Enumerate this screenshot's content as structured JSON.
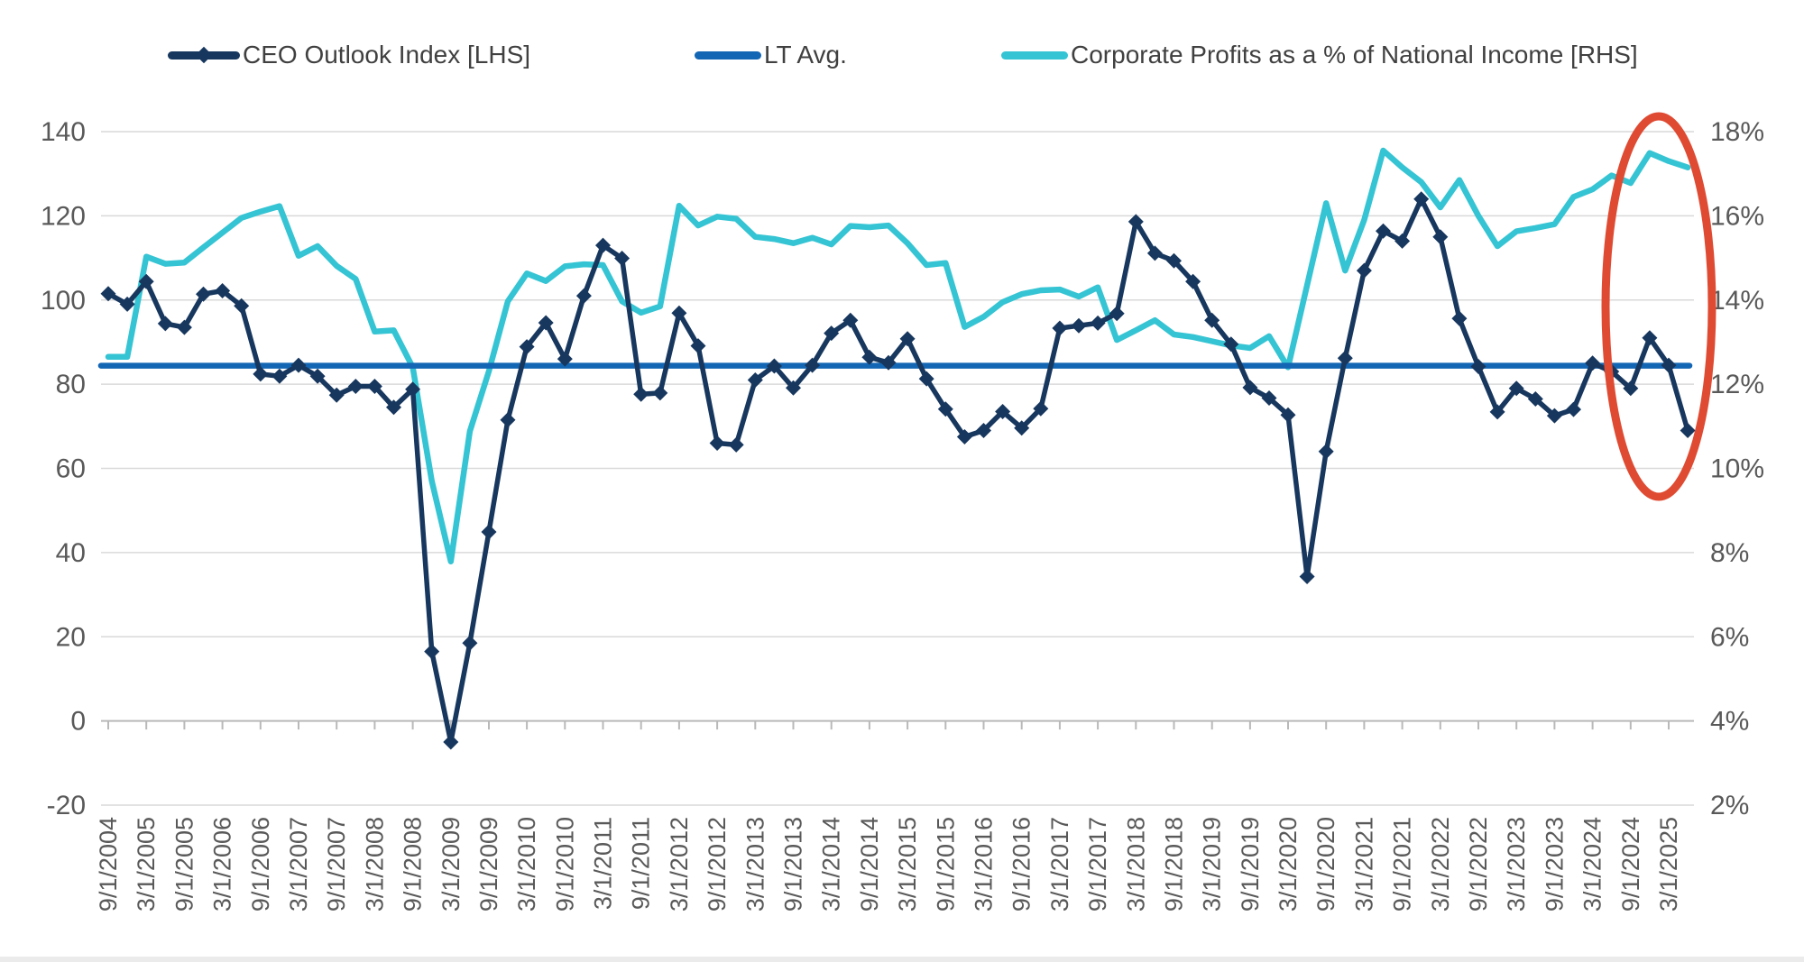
{
  "page": {
    "background": "#ffffff"
  },
  "colors": {
    "ceo_line": "#17375e",
    "lt_avg_line": "#1366b4",
    "profits_line": "#35c4d3",
    "gridline": "#d9d9d9",
    "axis_line": "#b9b9b9",
    "tick_label": "#595959",
    "legend_text": "#404040",
    "highlight": "#df4a32",
    "background": "#ffffff"
  },
  "legend": {
    "items": [
      {
        "label": "CEO Outlook Index [LHS]",
        "color": "#17375e",
        "marker": "diamond"
      },
      {
        "label": "LT Avg.",
        "color": "#1366b4",
        "marker": "line"
      },
      {
        "label": "Corporate Profits as a % of National Income [RHS]",
        "color": "#35c4d3",
        "marker": "line"
      }
    ]
  },
  "chart_data": {
    "type": "line",
    "title": "",
    "legend_position": "top",
    "gridlines": "horizontal",
    "points_per_tick": 2,
    "categories": [
      "9/1/2004",
      "3/1/2005",
      "9/1/2005",
      "3/1/2006",
      "9/1/2006",
      "3/1/2007",
      "9/1/2007",
      "3/1/2008",
      "9/1/2008",
      "3/1/2009",
      "9/1/2009",
      "3/1/2010",
      "9/1/2010",
      "3/1/2011",
      "9/1/2011",
      "3/1/2012",
      "9/1/2012",
      "3/1/2013",
      "9/1/2013",
      "3/1/2014",
      "9/1/2014",
      "3/1/2015",
      "9/1/2015",
      "3/1/2016",
      "9/1/2016",
      "3/1/2017",
      "9/1/2017",
      "3/1/2018",
      "9/1/2018",
      "3/1/2019",
      "9/1/2019",
      "3/1/2020",
      "9/1/2020",
      "3/1/2021",
      "9/1/2021",
      "3/1/2022",
      "9/1/2022",
      "3/1/2023",
      "9/1/2023",
      "3/1/2024",
      "9/1/2024",
      "3/1/2025"
    ],
    "left_axis": {
      "min": -20,
      "max": 140,
      "tick_values": [
        140,
        120,
        100,
        80,
        60,
        40,
        20,
        0,
        -20
      ],
      "tick_labels": [
        "140",
        "120",
        "100",
        "80",
        "60",
        "40",
        "20",
        "0",
        "-20"
      ]
    },
    "right_axis": {
      "min": 2,
      "max": 18,
      "tick_values": [
        18,
        16,
        14,
        12,
        10,
        8,
        6,
        4,
        2
      ],
      "tick_labels": [
        "18%",
        "16%",
        "14%",
        "12%",
        "10%",
        "8%",
        "6%",
        "4%",
        "2%"
      ]
    },
    "series": [
      {
        "name": "CEO Outlook Index [LHS]",
        "axis": "left",
        "color": "#17375e",
        "marker": "diamond",
        "line_width": 5.5,
        "values": [
          101.5,
          99,
          104.4,
          94.4,
          93.5,
          101.4,
          102.2,
          98.6,
          82.4,
          81.9,
          84.5,
          81.9,
          77.4,
          79.5,
          79.5,
          74.5,
          78.8,
          16.5,
          -5,
          18.5,
          44.9,
          71.5,
          88.9,
          94.6,
          86,
          101,
          113,
          109.9,
          77.6,
          77.9,
          96.9,
          89.1,
          66,
          65.6,
          81,
          84.3,
          79.1,
          84.5,
          92.1,
          95.2,
          86.4,
          85.1,
          90.8,
          81.3,
          74.1,
          67.5,
          69,
          73.5,
          69.6,
          74.2,
          93.3,
          93.9,
          94.5,
          96.8,
          118.6,
          111.1,
          109.3,
          104.4,
          95.2,
          89.5,
          79.2,
          76.7,
          72.7,
          34.3,
          64,
          86.2,
          107,
          116.4,
          114,
          124,
          115,
          95.6,
          84.2,
          73.4,
          79,
          76.5,
          72.5,
          74,
          85,
          83,
          79,
          91,
          84.5,
          69
        ]
      },
      {
        "name": "LT Avg.",
        "axis": "left",
        "color": "#1366b4",
        "marker": "none",
        "line_width": 6.5,
        "constant_value": 84.4
      },
      {
        "name": "Corporate Profits as a % of National Income [RHS]",
        "axis": "right",
        "color": "#35c4d3",
        "marker": "none",
        "line_width": 6.5,
        "values": [
          12.65,
          12.65,
          15.03,
          14.86,
          14.89,
          15.25,
          15.6,
          15.95,
          16.1,
          16.23,
          15.05,
          15.28,
          14.81,
          14.5,
          13.25,
          13.28,
          12.4,
          9.7,
          7.79,
          10.88,
          12.31,
          13.97,
          14.63,
          14.45,
          14.8,
          14.85,
          14.83,
          13.97,
          13.7,
          13.85,
          16.24,
          15.77,
          15.98,
          15.93,
          15.5,
          15.45,
          15.35,
          15.48,
          15.32,
          15.76,
          15.73,
          15.77,
          15.35,
          14.83,
          14.88,
          13.36,
          13.6,
          13.95,
          14.14,
          14.23,
          14.25,
          14.08,
          14.3,
          13.05,
          13.28,
          13.52,
          13.18,
          13.12,
          13.02,
          12.92,
          12.86,
          13.14,
          12.4,
          14.35,
          16.3,
          14.7,
          15.9,
          17.55,
          17.15,
          16.8,
          16.2,
          16.85,
          16,
          15.28,
          15.63,
          15.71,
          15.8,
          16.45,
          16.63,
          16.96,
          16.78,
          17.49,
          17.3,
          17.15
        ]
      }
    ],
    "annotation": {
      "type": "ellipse",
      "color": "#df4a32"
    }
  }
}
